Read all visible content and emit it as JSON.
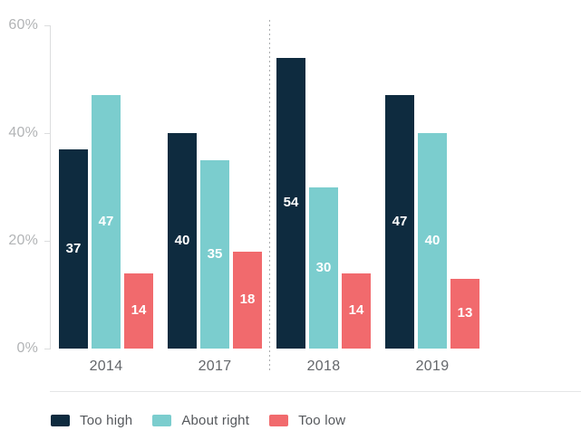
{
  "chart_data": {
    "type": "bar",
    "title": "",
    "xlabel": "",
    "ylabel": "",
    "categories": [
      "2014",
      "2017",
      "2018",
      "2019"
    ],
    "series": [
      {
        "name": "Too high",
        "color": "#0e2b3f",
        "values": [
          37,
          40,
          54,
          47
        ]
      },
      {
        "name": "About right",
        "color": "#7bcdce",
        "values": [
          47,
          35,
          30,
          40
        ]
      },
      {
        "name": "Too low",
        "color": "#f16a6d",
        "values": [
          14,
          18,
          14,
          13
        ]
      }
    ],
    "ylim": [
      0,
      60
    ],
    "yticks": [
      {
        "value": 0,
        "label": "0%"
      },
      {
        "value": 20,
        "label": "20%"
      },
      {
        "value": 40,
        "label": "40%"
      },
      {
        "value": 60,
        "label": "60%"
      }
    ],
    "grid": false,
    "value_labels_position": "inside-center",
    "separator_after_category_index": 1,
    "legend_position": "bottom"
  },
  "colors": {
    "background": "#ffffff",
    "axis_line": "#dcddde",
    "y_label_text": "#b2b4b6",
    "x_label_text": "#63666a",
    "legend_text": "#55585c",
    "legend_divider": "#e5e6e7",
    "separator_dash": "#abadaf",
    "bar_value_text": "#ffffff"
  }
}
